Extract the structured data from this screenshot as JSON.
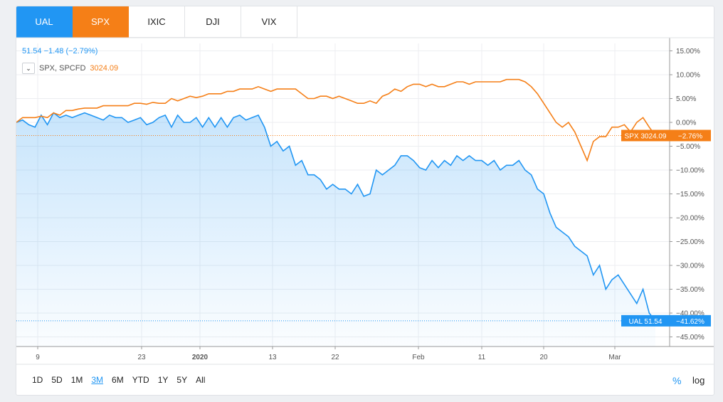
{
  "tabs": [
    {
      "label": "UAL"
    },
    {
      "label": "SPX"
    },
    {
      "label": "IXIC"
    },
    {
      "label": "DJI"
    },
    {
      "label": "VIX"
    }
  ],
  "legend": {
    "ual_line": "51.54  −1.48 (−2.79%)",
    "spx_name": "SPX, SPCFD",
    "spx_value": "3024.09"
  },
  "badges": {
    "spx_label": "SPX 3024.09",
    "spx_pct": "−2.76%",
    "ual_label": "UAL 51.54",
    "ual_pct": "−41.62%"
  },
  "colors": {
    "ual": "#2196f3",
    "spx": "#f57f17"
  },
  "ranges": [
    "1D",
    "5D",
    "1M",
    "3M",
    "6M",
    "YTD",
    "1Y",
    "5Y",
    "All"
  ],
  "active_range": "3M",
  "scale_percent": "%",
  "scale_log": "log",
  "chart_data": {
    "type": "line",
    "yaxis": {
      "unit": "%",
      "min": -45,
      "max": 15,
      "ticks": [
        "15.00%",
        "10.00%",
        "5.00%",
        "0.00%",
        "−5.00%",
        "−10.00%",
        "−15.00%",
        "−20.00%",
        "−25.00%",
        "−30.00%",
        "−35.00%",
        "−40.00%",
        "−45.00%"
      ]
    },
    "xaxis": {
      "ticks": [
        "9",
        "23",
        "2020",
        "13",
        "22",
        "Feb",
        "11",
        "20",
        "Mar"
      ]
    },
    "series": [
      {
        "name": "UAL",
        "area": true,
        "values": [
          0,
          0.5,
          -0.5,
          -1,
          1.5,
          -0.5,
          2,
          1,
          1.5,
          1,
          1.5,
          2,
          1.5,
          1,
          0.5,
          1.5,
          1,
          1,
          0,
          0.5,
          1,
          -0.5,
          0,
          1,
          1.5,
          -1,
          1.5,
          0,
          0,
          1,
          -1,
          1,
          -1,
          1,
          -1,
          1,
          1.5,
          0.5,
          1,
          1.5,
          -1,
          -5,
          -4,
          -6,
          -5,
          -9,
          -8,
          -11,
          -11,
          -12,
          -14,
          -13,
          -14,
          -14,
          -15,
          -13,
          -15.5,
          -15,
          -10,
          -11,
          -10,
          -9,
          -7,
          -7,
          -8,
          -9.5,
          -10,
          -8,
          -9.5,
          -8,
          -9,
          -7,
          -8,
          -7,
          -8,
          -8,
          -9,
          -8,
          -10,
          -9,
          -9,
          -8,
          -10,
          -11,
          -14,
          -15,
          -19,
          -22,
          -23,
          -24,
          -26,
          -27,
          -28,
          -32,
          -30,
          -35,
          -33,
          -32,
          -34,
          -36,
          -38,
          -35,
          -40,
          -41.62
        ]
      },
      {
        "name": "SPX",
        "area": false,
        "values": [
          0,
          1,
          1,
          1,
          1.3,
          1,
          2,
          1.5,
          2.5,
          2.5,
          2.8,
          3,
          3,
          3,
          3.5,
          3.5,
          3.5,
          3.5,
          3.5,
          4,
          4,
          3.8,
          4.2,
          4,
          4,
          5,
          4.5,
          5,
          5.5,
          5.2,
          5.5,
          6,
          6,
          6,
          6.5,
          6.5,
          7,
          7,
          7,
          7.5,
          7,
          6.5,
          7,
          7,
          7,
          7,
          6,
          5,
          5,
          5.5,
          5.5,
          5,
          5.5,
          5,
          4.5,
          4,
          4,
          4.5,
          4,
          5.5,
          6,
          7,
          6.5,
          7.5,
          8,
          8,
          7.5,
          8,
          7.5,
          7.5,
          8,
          8.5,
          8.5,
          8,
          8.5,
          8.5,
          8.5,
          8.5,
          8.5,
          9,
          9,
          9,
          8.5,
          7.5,
          6,
          4,
          2,
          0,
          -1,
          0,
          -2,
          -5,
          -8,
          -4,
          -3,
          -3,
          -1,
          -1,
          -0.5,
          -2,
          0,
          1,
          -1,
          -2.76
        ]
      }
    ]
  }
}
